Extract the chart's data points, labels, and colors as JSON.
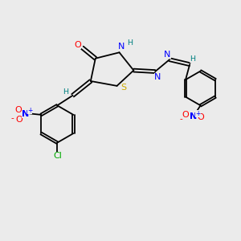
{
  "bg_color": "#ebebeb",
  "atom_colors": {
    "C": "#000000",
    "N": "#0000ff",
    "O": "#ff0000",
    "S": "#ccaa00",
    "H": "#008080",
    "Cl": "#00aa00"
  },
  "bond_color": "#000000"
}
